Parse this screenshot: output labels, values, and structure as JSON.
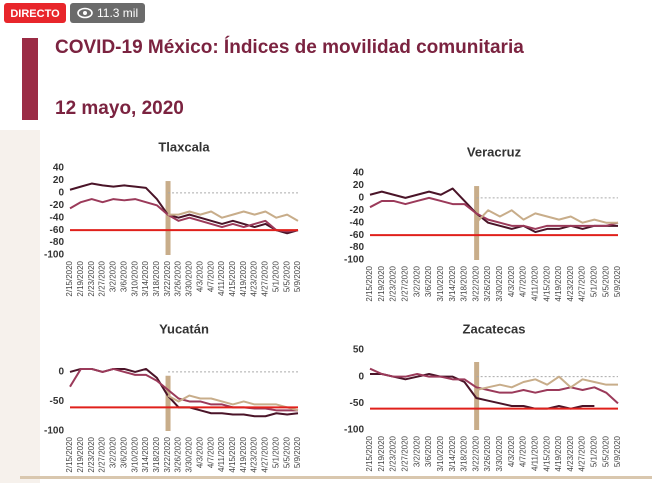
{
  "overlay": {
    "live": "DIRECTO",
    "views": "11.3 mil"
  },
  "header": {
    "title": "COVID-19 México: Índices de movilidad comunitaria",
    "date": "12 mayo, 2020"
  },
  "chart_data": [
    {
      "type": "line",
      "title": "Tlaxcala",
      "categories": [
        "2/15/2020",
        "2/19/2020",
        "2/23/2020",
        "2/27/2020",
        "3/2/2020",
        "3/6/2020",
        "3/10/2020",
        "3/14/2020",
        "3/18/2020",
        "3/22/2020",
        "3/26/2020",
        "3/30/2020",
        "4/3/2020",
        "4/7/2020",
        "4/11/2020",
        "4/15/2020",
        "4/19/2020",
        "4/23/2020",
        "4/27/2020",
        "5/1/2020",
        "5/5/2020",
        "5/9/2020"
      ],
      "series": [
        {
          "color": "#4a1428",
          "values": [
            5,
            10,
            15,
            12,
            10,
            12,
            10,
            8,
            -10,
            -35,
            -40,
            -35,
            -40,
            -45,
            -50,
            -45,
            -50,
            -55,
            -50,
            -60,
            -65,
            -60
          ]
        },
        {
          "color": "#9b3a5a",
          "values": [
            -25,
            -15,
            -10,
            -15,
            -10,
            -12,
            -10,
            -15,
            -20,
            -35,
            -45,
            -40,
            -45,
            -50,
            -55,
            -50,
            -55,
            -50,
            -45,
            -60,
            -62,
            -60
          ]
        },
        {
          "color": "#c8ad8a",
          "values": [
            null,
            null,
            null,
            null,
            null,
            null,
            null,
            null,
            null,
            -35,
            -35,
            -30,
            -35,
            -30,
            -40,
            -35,
            -30,
            -35,
            -30,
            -40,
            -35,
            -45
          ]
        }
      ],
      "reference_line": {
        "value": -60,
        "color": "#e0201b"
      },
      "ylim": [
        -100,
        40
      ],
      "yticks": [
        40,
        20,
        0,
        -20,
        -40,
        -60,
        -80,
        -100
      ]
    },
    {
      "type": "line",
      "title": "Veracruz",
      "categories": [
        "2/15/2020",
        "2/19/2020",
        "2/23/2020",
        "2/27/2020",
        "3/2/2020",
        "3/6/2020",
        "3/10/2020",
        "3/14/2020",
        "3/18/2020",
        "3/22/2020",
        "3/26/2020",
        "3/30/2020",
        "4/3/2020",
        "4/7/2020",
        "4/11/2020",
        "4/15/2020",
        "4/19/2020",
        "4/23/2020",
        "4/27/2020",
        "5/1/2020",
        "5/5/2020",
        "5/9/2020"
      ],
      "series": [
        {
          "color": "#4a1428",
          "values": [
            5,
            10,
            5,
            0,
            5,
            10,
            5,
            15,
            -5,
            -25,
            -40,
            -45,
            -50,
            -45,
            -55,
            -50,
            -50,
            -45,
            -50,
            -45,
            -45,
            -45
          ]
        },
        {
          "color": "#9b3a5a",
          "values": [
            -15,
            -5,
            -5,
            -10,
            -5,
            0,
            -5,
            -10,
            -10,
            -25,
            -35,
            -40,
            -45,
            -45,
            -50,
            -45,
            -45,
            -45,
            -45,
            -45,
            -45,
            -40
          ]
        },
        {
          "color": "#c8ad8a",
          "values": [
            null,
            null,
            null,
            null,
            null,
            null,
            null,
            null,
            null,
            -40,
            -20,
            -30,
            -20,
            -35,
            -25,
            -30,
            -35,
            -30,
            -40,
            -35,
            -40,
            -40
          ]
        }
      ],
      "reference_line": {
        "value": -60,
        "color": "#e0201b"
      },
      "ylim": [
        -100,
        40
      ],
      "yticks": [
        40,
        20,
        0,
        -20,
        -40,
        -60,
        -80,
        -100
      ]
    },
    {
      "type": "line",
      "title": "Yucatán",
      "categories": [
        "2/15/2020",
        "2/19/2020",
        "2/23/2020",
        "2/27/2020",
        "3/2/2020",
        "3/6/2020",
        "3/10/2020",
        "3/14/2020",
        "3/18/2020",
        "3/22/2020",
        "3/26/2020",
        "3/30/2020",
        "4/3/2020",
        "4/7/2020",
        "4/11/2020",
        "4/15/2020",
        "4/19/2020",
        "4/23/2020",
        "4/27/2020",
        "5/1/2020",
        "5/5/2020",
        "5/9/2020"
      ],
      "series": [
        {
          "color": "#4a1428",
          "values": [
            0,
            5,
            5,
            0,
            5,
            5,
            0,
            5,
            -10,
            -40,
            -60,
            -60,
            -65,
            -70,
            -70,
            -72,
            -72,
            -75,
            -75,
            -70,
            -72,
            -70
          ]
        },
        {
          "color": "#9b3a5a",
          "values": [
            -25,
            5,
            5,
            0,
            5,
            0,
            -5,
            -5,
            -15,
            -30,
            -45,
            -50,
            -50,
            -55,
            -55,
            -60,
            -60,
            -62,
            -62,
            -65,
            -65,
            -65
          ]
        },
        {
          "color": "#c8ad8a",
          "values": [
            null,
            null,
            null,
            null,
            null,
            null,
            null,
            null,
            null,
            -40,
            -50,
            -40,
            -45,
            -45,
            -50,
            -55,
            -50,
            -55,
            -55,
            -55,
            -60,
            -65
          ]
        }
      ],
      "reference_line": {
        "value": -60,
        "color": "#e0201b"
      },
      "ylim": [
        -100,
        10
      ],
      "yticks": [
        0,
        -50,
        -100
      ]
    },
    {
      "type": "line",
      "title": "Zacatecas",
      "categories": [
        "2/15/2020",
        "2/19/2020",
        "2/23/2020",
        "2/27/2020",
        "3/2/2020",
        "3/6/2020",
        "3/10/2020",
        "3/14/2020",
        "3/18/2020",
        "3/22/2020",
        "3/26/2020",
        "3/30/2020",
        "4/3/2020",
        "4/7/2020",
        "4/11/2020",
        "4/15/2020",
        "4/19/2020",
        "4/23/2020",
        "4/27/2020",
        "5/1/2020",
        "5/5/2020",
        "5/9/2020"
      ],
      "series": [
        {
          "color": "#4a1428",
          "values": [
            5,
            5,
            0,
            -5,
            0,
            5,
            0,
            0,
            -10,
            -40,
            -45,
            -50,
            -55,
            -55,
            -60,
            -60,
            -55,
            -60,
            -55,
            -55,
            null,
            null
          ]
        },
        {
          "color": "#9b3a5a",
          "values": [
            15,
            5,
            0,
            0,
            5,
            0,
            0,
            -5,
            -5,
            -20,
            -25,
            -30,
            -30,
            -25,
            -30,
            -25,
            -25,
            -20,
            -25,
            -20,
            -30,
            -50
          ]
        },
        {
          "color": "#c8ad8a",
          "values": [
            null,
            null,
            null,
            null,
            null,
            null,
            null,
            null,
            null,
            -25,
            -20,
            -15,
            -20,
            -10,
            -5,
            -15,
            0,
            -20,
            -5,
            -10,
            -15,
            -15
          ]
        }
      ],
      "reference_line": {
        "value": -60,
        "color": "#e0201b"
      },
      "ylim": [
        -100,
        50
      ],
      "yticks": [
        50,
        0,
        -50,
        -100
      ]
    }
  ]
}
